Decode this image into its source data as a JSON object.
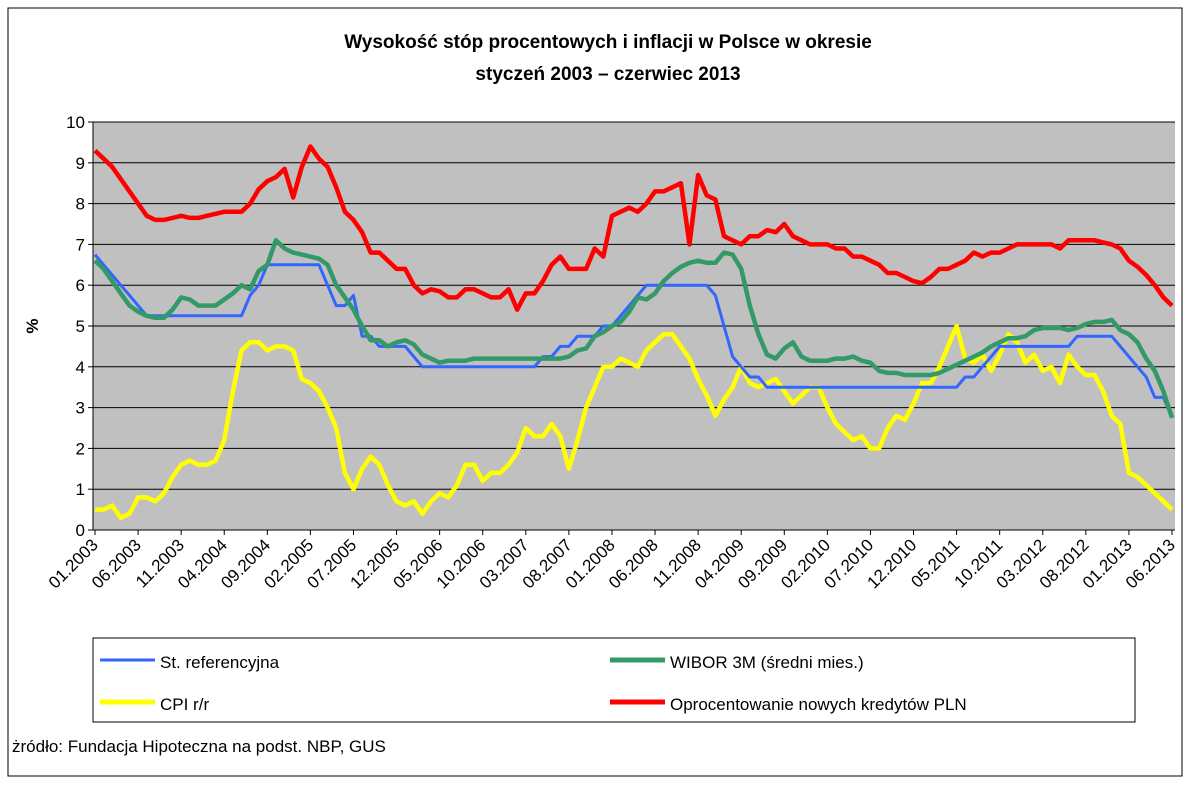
{
  "chart_data": {
    "type": "line",
    "title": [
      "Wysokość stóp procentowych i inflacji w Polsce w okresie",
      "styczeń 2003 – czerwiec 2013"
    ],
    "y_label": "%",
    "source": "żródło: Fundacja Hipoteczna na podst. NBP, GUS",
    "categories": [
      "01.2003",
      null,
      null,
      null,
      null,
      "06.2003",
      null,
      null,
      null,
      null,
      "11.2003",
      null,
      null,
      null,
      null,
      "04.2004",
      null,
      null,
      null,
      null,
      "09.2004",
      null,
      null,
      null,
      null,
      "02.2005",
      null,
      null,
      null,
      null,
      "07.2005",
      null,
      null,
      null,
      null,
      "12.2005",
      null,
      null,
      null,
      null,
      "05.2006",
      null,
      null,
      null,
      null,
      "10.2006",
      null,
      null,
      null,
      null,
      "03.2007",
      null,
      null,
      null,
      null,
      "08.2007",
      null,
      null,
      null,
      null,
      "01.2008",
      null,
      null,
      null,
      null,
      "06.2008",
      null,
      null,
      null,
      null,
      "11.2008",
      null,
      null,
      null,
      null,
      "04.2009",
      null,
      null,
      null,
      null,
      "09.2009",
      null,
      null,
      null,
      null,
      "02.2010",
      null,
      null,
      null,
      null,
      "07.2010",
      null,
      null,
      null,
      null,
      "12.2010",
      null,
      null,
      null,
      null,
      "05.2011",
      null,
      null,
      null,
      null,
      "10.2011",
      null,
      null,
      null,
      null,
      "03.2012",
      null,
      null,
      null,
      null,
      "08.2012",
      null,
      null,
      null,
      null,
      "01.2013",
      null,
      null,
      null,
      null,
      "06.2013"
    ],
    "ylim": [
      0,
      10
    ],
    "yticks": [
      0,
      1,
      2,
      3,
      4,
      5,
      6,
      7,
      8,
      9,
      10
    ],
    "grid": true,
    "series": [
      {
        "name": "St. referencyjna",
        "color": "#3366ff",
        "values": [
          6.75,
          6.5,
          6.25,
          6.0,
          5.75,
          5.5,
          5.25,
          5.25,
          5.25,
          5.25,
          5.25,
          5.25,
          5.25,
          5.25,
          5.25,
          5.25,
          5.25,
          5.25,
          5.75,
          6.0,
          6.5,
          6.5,
          6.5,
          6.5,
          6.5,
          6.5,
          6.5,
          6.0,
          5.5,
          5.5,
          5.75,
          4.75,
          4.75,
          4.5,
          4.5,
          4.5,
          4.5,
          4.25,
          4.0,
          4.0,
          4.0,
          4.0,
          4.0,
          4.0,
          4.0,
          4.0,
          4.0,
          4.0,
          4.0,
          4.0,
          4.0,
          4.0,
          4.25,
          4.25,
          4.5,
          4.5,
          4.75,
          4.75,
          4.75,
          5.0,
          5.0,
          5.25,
          5.5,
          5.75,
          6.0,
          6.0,
          6.0,
          6.0,
          6.0,
          6.0,
          6.0,
          6.0,
          5.75,
          5.0,
          4.25,
          4.0,
          3.75,
          3.75,
          3.5,
          3.5,
          3.5,
          3.5,
          3.5,
          3.5,
          3.5,
          3.5,
          3.5,
          3.5,
          3.5,
          3.5,
          3.5,
          3.5,
          3.5,
          3.5,
          3.5,
          3.5,
          3.5,
          3.5,
          3.5,
          3.5,
          3.5,
          3.75,
          3.75,
          4.0,
          4.25,
          4.5,
          4.5,
          4.5,
          4.5,
          4.5,
          4.5,
          4.5,
          4.5,
          4.5,
          4.75,
          4.75,
          4.75,
          4.75,
          4.75,
          4.5,
          4.25,
          4.0,
          3.75,
          3.25,
          3.25,
          2.75
        ]
      },
      {
        "name": "WIBOR 3M (średni mies.)",
        "color": "#339966",
        "values": [
          6.6,
          6.4,
          6.1,
          5.8,
          5.5,
          5.35,
          5.25,
          5.2,
          5.2,
          5.4,
          5.7,
          5.65,
          5.5,
          5.5,
          5.5,
          5.65,
          5.8,
          6.0,
          5.9,
          6.35,
          6.5,
          7.1,
          6.9,
          6.8,
          6.75,
          6.7,
          6.65,
          6.5,
          6.0,
          5.7,
          5.4,
          5.0,
          4.65,
          4.65,
          4.5,
          4.6,
          4.65,
          4.55,
          4.3,
          4.2,
          4.1,
          4.15,
          4.15,
          4.15,
          4.2,
          4.2,
          4.2,
          4.2,
          4.2,
          4.2,
          4.2,
          4.2,
          4.2,
          4.2,
          4.2,
          4.25,
          4.4,
          4.45,
          4.75,
          4.85,
          5.0,
          5.1,
          5.35,
          5.7,
          5.65,
          5.8,
          6.1,
          6.3,
          6.45,
          6.55,
          6.6,
          6.55,
          6.55,
          6.8,
          6.75,
          6.4,
          5.5,
          4.8,
          4.3,
          4.2,
          4.45,
          4.6,
          4.25,
          4.15,
          4.15,
          4.15,
          4.2,
          4.2,
          4.25,
          4.15,
          4.1,
          3.9,
          3.85,
          3.85,
          3.8,
          3.8,
          3.8,
          3.8,
          3.85,
          3.95,
          4.05,
          4.15,
          4.25,
          4.35,
          4.5,
          4.6,
          4.7,
          4.7,
          4.75,
          4.9,
          4.95,
          4.95,
          4.95,
          4.9,
          4.95,
          5.05,
          5.1,
          5.1,
          5.15,
          4.9,
          4.8,
          4.6,
          4.2,
          3.9,
          3.4,
          2.75
        ]
      },
      {
        "name": "CPI r/r",
        "color": "#ffff00",
        "values": [
          0.5,
          0.5,
          0.6,
          0.3,
          0.4,
          0.8,
          0.8,
          0.7,
          0.9,
          1.3,
          1.6,
          1.7,
          1.6,
          1.6,
          1.7,
          2.2,
          3.4,
          4.4,
          4.6,
          4.6,
          4.4,
          4.5,
          4.5,
          4.4,
          3.7,
          3.6,
          3.4,
          3.0,
          2.5,
          1.4,
          1.0,
          1.5,
          1.8,
          1.6,
          1.1,
          0.7,
          0.6,
          0.7,
          0.4,
          0.7,
          0.9,
          0.8,
          1.1,
          1.6,
          1.6,
          1.2,
          1.4,
          1.4,
          1.6,
          1.9,
          2.5,
          2.3,
          2.3,
          2.6,
          2.3,
          1.5,
          2.2,
          3.0,
          3.5,
          4.0,
          4.0,
          4.2,
          4.1,
          4.0,
          4.4,
          4.6,
          4.8,
          4.8,
          4.5,
          4.2,
          3.7,
          3.3,
          2.8,
          3.2,
          3.5,
          4.0,
          3.6,
          3.5,
          3.6,
          3.7,
          3.4,
          3.1,
          3.3,
          3.5,
          3.5,
          3.0,
          2.6,
          2.4,
          2.2,
          2.3,
          2.0,
          2.0,
          2.5,
          2.8,
          2.7,
          3.1,
          3.6,
          3.6,
          4.0,
          4.5,
          5.0,
          4.2,
          4.1,
          4.3,
          3.9,
          4.3,
          4.8,
          4.6,
          4.1,
          4.3,
          3.9,
          4.0,
          3.6,
          4.3,
          4.0,
          3.8,
          3.8,
          3.4,
          2.8,
          2.6,
          1.4,
          1.3,
          1.1,
          0.9,
          0.7,
          0.5
        ]
      },
      {
        "name": "Oprocentowanie nowych kredytów PLN",
        "color": "#ff0000",
        "values": [
          9.3,
          9.1,
          8.9,
          8.6,
          8.3,
          8.0,
          7.7,
          7.6,
          7.6,
          7.65,
          7.7,
          7.65,
          7.65,
          7.7,
          7.75,
          7.8,
          7.8,
          7.8,
          8.0,
          8.35,
          8.55,
          8.65,
          8.85,
          8.15,
          8.9,
          9.4,
          9.1,
          8.9,
          8.4,
          7.8,
          7.6,
          7.3,
          6.8,
          6.8,
          6.6,
          6.4,
          6.4,
          6.0,
          5.8,
          5.9,
          5.85,
          5.7,
          5.7,
          5.9,
          5.9,
          5.8,
          5.7,
          5.7,
          5.9,
          5.4,
          5.8,
          5.8,
          6.1,
          6.5,
          6.7,
          6.4,
          6.4,
          6.4,
          6.9,
          6.7,
          7.7,
          7.8,
          7.9,
          7.8,
          8.0,
          8.3,
          8.3,
          8.4,
          8.5,
          7.0,
          8.7,
          8.2,
          8.1,
          7.2,
          7.1,
          7.0,
          7.2,
          7.2,
          7.35,
          7.3,
          7.5,
          7.2,
          7.1,
          7.0,
          7.0,
          7.0,
          6.9,
          6.9,
          6.7,
          6.7,
          6.6,
          6.5,
          6.3,
          6.3,
          6.2,
          6.1,
          6.05,
          6.2,
          6.4,
          6.4,
          6.5,
          6.6,
          6.8,
          6.7,
          6.8,
          6.8,
          6.9,
          7.0,
          7.0,
          7.0,
          7.0,
          7.0,
          6.9,
          7.1,
          7.1,
          7.1,
          7.1,
          7.05,
          7.0,
          6.9,
          6.6,
          6.45,
          6.25,
          6.0,
          5.7,
          5.5
        ]
      }
    ]
  }
}
